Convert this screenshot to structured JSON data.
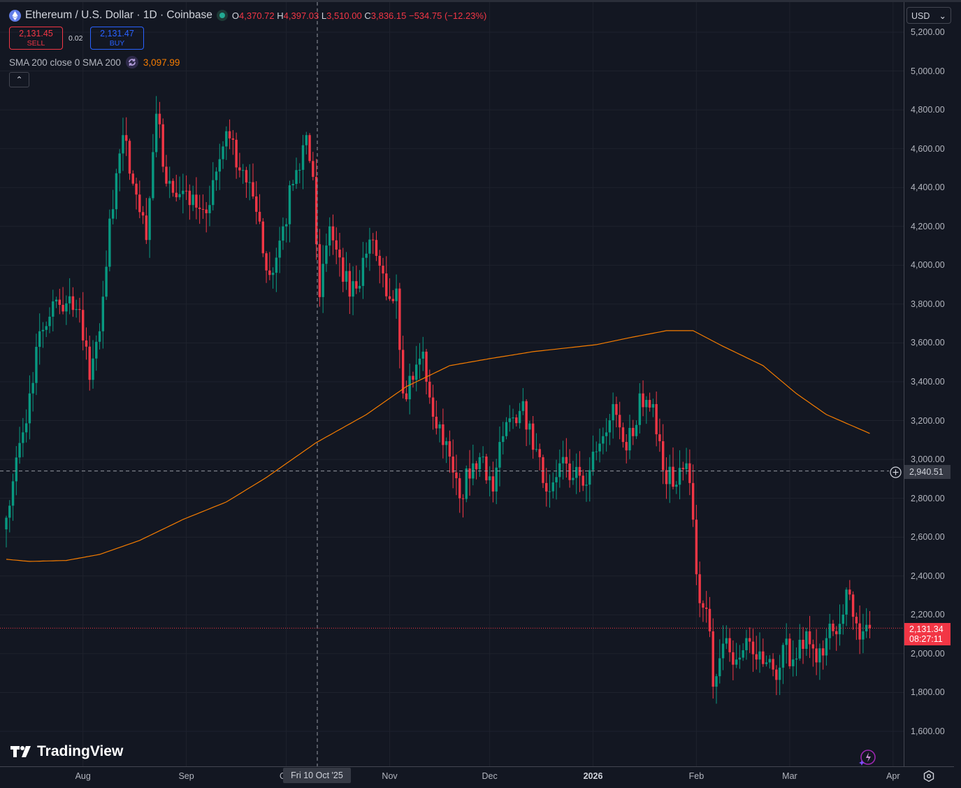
{
  "header": {
    "symbol_title": "Ethereum / U.S. Dollar · 1D · Coinbase",
    "ohlc": {
      "o_label": "O",
      "o": "4,370.72",
      "h_label": "H",
      "h": "4,397.03",
      "l_label": "L",
      "l": "3,510.00",
      "c_label": "C",
      "c": "3,836.15",
      "change": "−534.75 (−12.23%)"
    },
    "sell_price": "2,131.45",
    "sell_label": "SELL",
    "spread": "0.02",
    "buy_price": "2,131.47",
    "buy_label": "BUY",
    "indicator_label": "SMA 200 close 0 SMA 200",
    "indicator_value": "3,097.99",
    "collapse_icon": "chevron-up",
    "currency": "USD"
  },
  "crosshair": {
    "price": "2,940.51",
    "date": "Fri 10 Oct '25"
  },
  "last_price": {
    "price": "2,131.34",
    "countdown": "08:27:11"
  },
  "branding": {
    "logo_text": "TradingView"
  },
  "colors": {
    "up": "#089981",
    "down": "#f23645",
    "sma": "#f57c00",
    "background": "#131722",
    "grid": "#1e222d"
  },
  "chart_data": {
    "type": "candlestick",
    "title": "Ethereum / U.S. Dollar · 1D · Coinbase",
    "ylim": [
      1450,
      5300
    ],
    "y_ticks": [
      "5,200.00",
      "5,000.00",
      "4,800.00",
      "4,600.00",
      "4,400.00",
      "4,200.00",
      "4,000.00",
      "3,800.00",
      "3,600.00",
      "3,400.00",
      "3,200.00",
      "3,000.00",
      "2,800.00",
      "2,600.00",
      "2,400.00",
      "2,200.00",
      "2,000.00",
      "1,800.00",
      "1,600.00"
    ],
    "y_tick_values": [
      5200,
      5000,
      4800,
      4600,
      4400,
      4200,
      4000,
      3800,
      3600,
      3400,
      3200,
      3000,
      2800,
      2600,
      2400,
      2200,
      2000,
      1800,
      1600
    ],
    "x_ticks": [
      {
        "label": "Aug",
        "day": 23,
        "bold": false
      },
      {
        "label": "Sep",
        "day": 54,
        "bold": false
      },
      {
        "label": "Oct",
        "day": 84,
        "bold": false
      },
      {
        "label": "Nov",
        "day": 115,
        "bold": false
      },
      {
        "label": "Dec",
        "day": 145,
        "bold": false
      },
      {
        "label": "2026",
        "day": 176,
        "bold": true
      },
      {
        "label": "Feb",
        "day": 207,
        "bold": false
      },
      {
        "label": "Mar",
        "day": 235,
        "bold": false
      },
      {
        "label": "Apr",
        "day": 266,
        "bold": false
      }
    ],
    "x_start": "2025-07-09",
    "days_visible": 270,
    "close_waypoints": [
      [
        0,
        2700
      ],
      [
        7,
        3340
      ],
      [
        10,
        3660
      ],
      [
        13,
        3735
      ],
      [
        19,
        3840
      ],
      [
        22,
        3770
      ],
      [
        25,
        3410
      ],
      [
        28,
        3660
      ],
      [
        31,
        4240
      ],
      [
        35,
        4670
      ],
      [
        38,
        4420
      ],
      [
        42,
        4130
      ],
      [
        45,
        4780
      ],
      [
        48,
        4420
      ],
      [
        51,
        4350
      ],
      [
        55,
        4310
      ],
      [
        61,
        4310
      ],
      [
        66,
        4690
      ],
      [
        71,
        4490
      ],
      [
        75,
        4275
      ],
      [
        79,
        3950
      ],
      [
        83,
        4200
      ],
      [
        87,
        4490
      ],
      [
        90,
        4670
      ],
      [
        92,
        4455
      ],
      [
        94,
        3836
      ],
      [
        97,
        4200
      ],
      [
        101,
        3915
      ],
      [
        105,
        3880
      ],
      [
        110,
        4130
      ],
      [
        114,
        3840
      ],
      [
        117,
        3880
      ],
      [
        119,
        3340
      ],
      [
        122,
        3410
      ],
      [
        125,
        3555
      ],
      [
        129,
        3160
      ],
      [
        133,
        3015
      ],
      [
        136,
        2800
      ],
      [
        140,
        2980
      ],
      [
        143,
        3015
      ],
      [
        146,
        2835
      ],
      [
        149,
        3120
      ],
      [
        155,
        3300
      ],
      [
        158,
        3050
      ],
      [
        162,
        2835
      ],
      [
        166,
        2980
      ],
      [
        170,
        2905
      ],
      [
        175,
        2945
      ],
      [
        179,
        3120
      ],
      [
        182,
        3285
      ],
      [
        185,
        3090
      ],
      [
        188,
        3120
      ],
      [
        190,
        3340
      ],
      [
        194,
        3285
      ],
      [
        197,
        2945
      ],
      [
        201,
        2870
      ],
      [
        204,
        2980
      ],
      [
        206,
        2690
      ],
      [
        208,
        2260
      ],
      [
        211,
        2115
      ],
      [
        212,
        1830
      ],
      [
        216,
        2080
      ],
      [
        219,
        1970
      ],
      [
        222,
        2080
      ],
      [
        225,
        1970
      ],
      [
        228,
        1955
      ],
      [
        231,
        1865
      ],
      [
        233,
        2045
      ],
      [
        236,
        1970
      ],
      [
        240,
        2115
      ],
      [
        243,
        1955
      ],
      [
        246,
        2080
      ],
      [
        249,
        2100
      ],
      [
        252,
        2330
      ],
      [
        254,
        2190
      ],
      [
        257,
        2115
      ],
      [
        259,
        2131
      ]
    ],
    "sma_200_waypoints": [
      [
        0,
        2486
      ],
      [
        7,
        2475
      ],
      [
        18,
        2480
      ],
      [
        28,
        2511
      ],
      [
        40,
        2583
      ],
      [
        53,
        2691
      ],
      [
        66,
        2781
      ],
      [
        78,
        2907
      ],
      [
        93,
        3087
      ],
      [
        108,
        3231
      ],
      [
        120,
        3375
      ],
      [
        133,
        3483
      ],
      [
        145,
        3519
      ],
      [
        158,
        3555
      ],
      [
        177,
        3591
      ],
      [
        187,
        3627
      ],
      [
        198,
        3663
      ],
      [
        206,
        3663
      ],
      [
        214,
        3591
      ],
      [
        227,
        3483
      ],
      [
        237,
        3339
      ],
      [
        246,
        3231
      ],
      [
        259,
        3134
      ]
    ],
    "legend": [
      "SMA 200 close 0 SMA 200"
    ]
  }
}
